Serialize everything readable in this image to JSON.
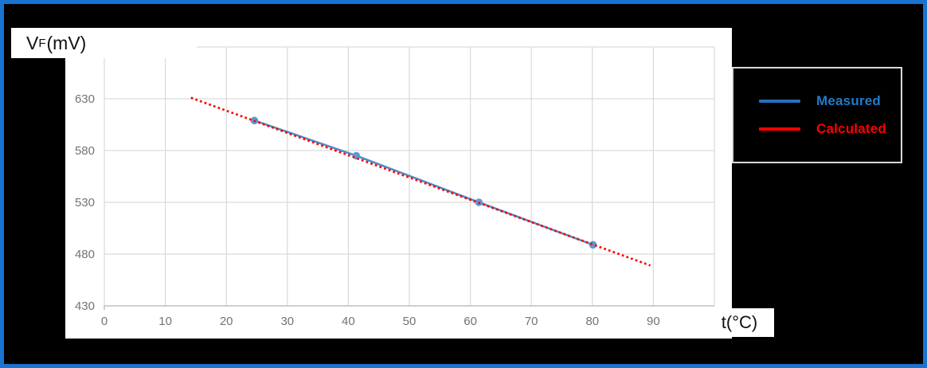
{
  "frame": {
    "border_color": "#1873D2",
    "background_color": "#000000",
    "chart_background": "#FFFFFF"
  },
  "axis_titles": {
    "y": {
      "base": "V",
      "sub": "F",
      "unit": " (mV)"
    },
    "x": {
      "base": "t",
      "unit": " (°C)"
    }
  },
  "legend": {
    "border_color": "#D9D9D9",
    "items": [
      {
        "label": "Measured",
        "label_color": "#1F7CCB",
        "line_color": "#2272B9"
      },
      {
        "label": "Calculated",
        "label_color": "#FF0000",
        "line_color": "#FF0000"
      }
    ]
  },
  "chart_data": {
    "type": "line",
    "title": "",
    "xlabel": "t (°C)",
    "ylabel": "VF (mV)",
    "xlim": [
      0,
      100
    ],
    "ylim": [
      430,
      680
    ],
    "x_grid_step": 10,
    "y_grid_step": 50,
    "x_ticks": [
      0,
      10,
      20,
      30,
      40,
      50,
      60,
      70,
      80,
      90
    ],
    "y_ticks": [
      430,
      480,
      530,
      580,
      630
    ],
    "grid": true,
    "grid_color": "#D9D9D9",
    "axis_line_color": "#BFBFBF",
    "tick_label_color": "#737373",
    "legend_position": "right-outside",
    "series": [
      {
        "name": "Measured",
        "style": "solid-line-with-round-markers",
        "line_color": "#4E8ECB",
        "marker_color": "#5B9BD5",
        "x": [
          24.6,
          41.3,
          61.4,
          80.1
        ],
        "y": [
          609,
          575,
          530,
          489
        ]
      },
      {
        "name": "Calculated",
        "style": "dotted-trendline",
        "line_color": "#FF0000",
        "x": [
          14.2,
          89.5
        ],
        "y": [
          631,
          469
        ]
      }
    ]
  }
}
